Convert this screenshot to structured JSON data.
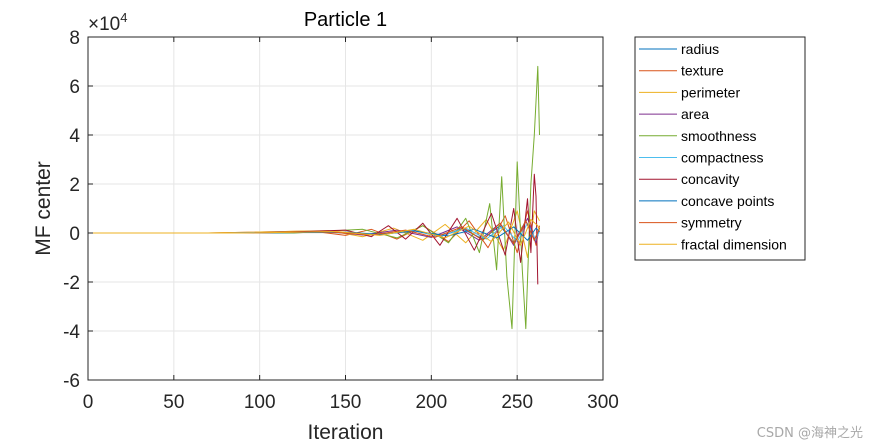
{
  "chart_data": {
    "type": "line",
    "title": "Particle 1",
    "xlabel": "Iteration",
    "ylabel": "MF center",
    "y_exponent_label": "×10",
    "y_exponent": "4",
    "xlim": [
      0,
      300
    ],
    "ylim": [
      -6,
      8
    ],
    "x_ticks": [
      0,
      50,
      100,
      150,
      200,
      250,
      300
    ],
    "x_tick_labels": [
      "0",
      "50",
      "100",
      "150",
      "200",
      "250",
      "300"
    ],
    "y_ticks": [
      -6,
      -4,
      -2,
      0,
      2,
      4,
      6,
      8
    ],
    "y_tick_labels": [
      "-6",
      "-4",
      "-2",
      "0",
      "2",
      "4",
      "6",
      "8"
    ],
    "grid": true,
    "legend_position": "outside-right",
    "series": [
      {
        "name": "radius",
        "color": "#0072BD",
        "points": [
          [
            0,
            0
          ],
          [
            70,
            0
          ],
          [
            140,
            0.03
          ],
          [
            170,
            -0.06
          ],
          [
            190,
            0.1
          ],
          [
            205,
            -0.15
          ],
          [
            218,
            0.18
          ],
          [
            230,
            -0.25
          ],
          [
            240,
            0.3
          ],
          [
            248,
            -0.4
          ],
          [
            255,
            0.5
          ],
          [
            260,
            -0.3
          ],
          [
            263,
            0.2
          ]
        ]
      },
      {
        "name": "texture",
        "color": "#D95319",
        "points": [
          [
            0,
            0
          ],
          [
            70,
            0
          ],
          [
            130,
            0.08
          ],
          [
            150,
            -0.1
          ],
          [
            165,
            0.15
          ],
          [
            180,
            -0.25
          ],
          [
            195,
            0.3
          ],
          [
            210,
            -0.35
          ],
          [
            222,
            0.5
          ],
          [
            233,
            -0.6
          ],
          [
            243,
            0.7
          ],
          [
            250,
            -0.8
          ],
          [
            256,
            0.9
          ],
          [
            261,
            -0.5
          ],
          [
            263,
            0.3
          ]
        ]
      },
      {
        "name": "perimeter",
        "color": "#EDB120",
        "points": [
          [
            0,
            0
          ],
          [
            70,
            0
          ],
          [
            140,
            0.1
          ],
          [
            160,
            -0.15
          ],
          [
            178,
            0.2
          ],
          [
            195,
            -0.3
          ],
          [
            208,
            0.35
          ],
          [
            220,
            -0.4
          ],
          [
            232,
            0.55
          ],
          [
            242,
            -0.7
          ],
          [
            250,
            0.9
          ],
          [
            256,
            -1.0
          ],
          [
            260,
            0.9
          ],
          [
            263,
            0.5
          ]
        ]
      },
      {
        "name": "area",
        "color": "#7E2F8E",
        "points": [
          [
            0,
            0
          ],
          [
            80,
            0
          ],
          [
            140,
            0.06
          ],
          [
            160,
            -0.08
          ],
          [
            180,
            0.12
          ],
          [
            200,
            -0.18
          ],
          [
            215,
            0.25
          ],
          [
            228,
            -0.3
          ],
          [
            240,
            0.4
          ],
          [
            248,
            -0.5
          ],
          [
            256,
            0.6
          ],
          [
            261,
            -0.4
          ],
          [
            263,
            0.2
          ]
        ]
      },
      {
        "name": "smoothness",
        "color": "#77AC30",
        "points": [
          [
            0,
            0
          ],
          [
            120,
            0
          ],
          [
            160,
            0.15
          ],
          [
            180,
            -0.2
          ],
          [
            195,
            0.3
          ],
          [
            210,
            -0.4
          ],
          [
            220,
            0.6
          ],
          [
            228,
            -0.8
          ],
          [
            234,
            1.2
          ],
          [
            238,
            -1.5
          ],
          [
            241,
            2.3
          ],
          [
            244,
            -1.8
          ],
          [
            247,
            -3.9
          ],
          [
            250,
            2.9
          ],
          [
            253,
            -1.5
          ],
          [
            255,
            -3.9
          ],
          [
            258,
            2.0
          ],
          [
            260,
            4.0
          ],
          [
            262,
            6.8
          ],
          [
            263,
            4.0
          ]
        ]
      },
      {
        "name": "compactness",
        "color": "#4DBEEE",
        "points": [
          [
            0,
            0
          ],
          [
            80,
            0
          ],
          [
            145,
            0.05
          ],
          [
            170,
            -0.08
          ],
          [
            190,
            0.12
          ],
          [
            205,
            -0.15
          ],
          [
            220,
            0.2
          ],
          [
            232,
            -0.25
          ],
          [
            242,
            0.3
          ],
          [
            250,
            -0.35
          ],
          [
            256,
            0.4
          ],
          [
            261,
            -0.3
          ],
          [
            263,
            0.1
          ]
        ]
      },
      {
        "name": "concavity",
        "color": "#A2142F",
        "points": [
          [
            0,
            0
          ],
          [
            100,
            0
          ],
          [
            150,
            0.12
          ],
          [
            165,
            -0.15
          ],
          [
            175,
            0.3
          ],
          [
            185,
            -0.25
          ],
          [
            195,
            0.4
          ],
          [
            205,
            -0.5
          ],
          [
            215,
            0.6
          ],
          [
            225,
            -0.7
          ],
          [
            235,
            0.8
          ],
          [
            243,
            -0.9
          ],
          [
            248,
            1.0
          ],
          [
            252,
            -1.2
          ],
          [
            256,
            1.4
          ],
          [
            258,
            -0.8
          ],
          [
            260,
            2.4
          ],
          [
            261,
            1.5
          ],
          [
            262,
            -2.1
          ]
        ]
      },
      {
        "name": "concave points",
        "color": "#0072BD",
        "points": [
          [
            0,
            0
          ],
          [
            100,
            0
          ],
          [
            150,
            0.04
          ],
          [
            170,
            -0.06
          ],
          [
            190,
            0.08
          ],
          [
            210,
            -0.12
          ],
          [
            225,
            0.15
          ],
          [
            238,
            -0.2
          ],
          [
            248,
            0.25
          ],
          [
            256,
            -0.3
          ],
          [
            261,
            0.2
          ],
          [
            263,
            0.05
          ]
        ]
      },
      {
        "name": "symmetry",
        "color": "#D95319",
        "points": [
          [
            0,
            0
          ],
          [
            90,
            0
          ],
          [
            140,
            0.05
          ],
          [
            165,
            -0.08
          ],
          [
            185,
            0.12
          ],
          [
            202,
            -0.18
          ],
          [
            218,
            0.25
          ],
          [
            230,
            -0.3
          ],
          [
            240,
            0.4
          ],
          [
            248,
            -0.45
          ],
          [
            255,
            0.5
          ],
          [
            260,
            -0.3
          ],
          [
            263,
            0.2
          ]
        ]
      },
      {
        "name": "fractal dimension",
        "color": "#EDB120",
        "points": [
          [
            0,
            0
          ],
          [
            90,
            0
          ],
          [
            145,
            0.06
          ],
          [
            170,
            -0.1
          ],
          [
            190,
            0.15
          ],
          [
            208,
            -0.2
          ],
          [
            222,
            0.28
          ],
          [
            235,
            -0.35
          ],
          [
            245,
            0.45
          ],
          [
            252,
            -0.5
          ],
          [
            258,
            0.55
          ],
          [
            262,
            0.3
          ],
          [
            263,
            0.1
          ]
        ]
      }
    ]
  },
  "watermark": "CSDN @海神之光"
}
